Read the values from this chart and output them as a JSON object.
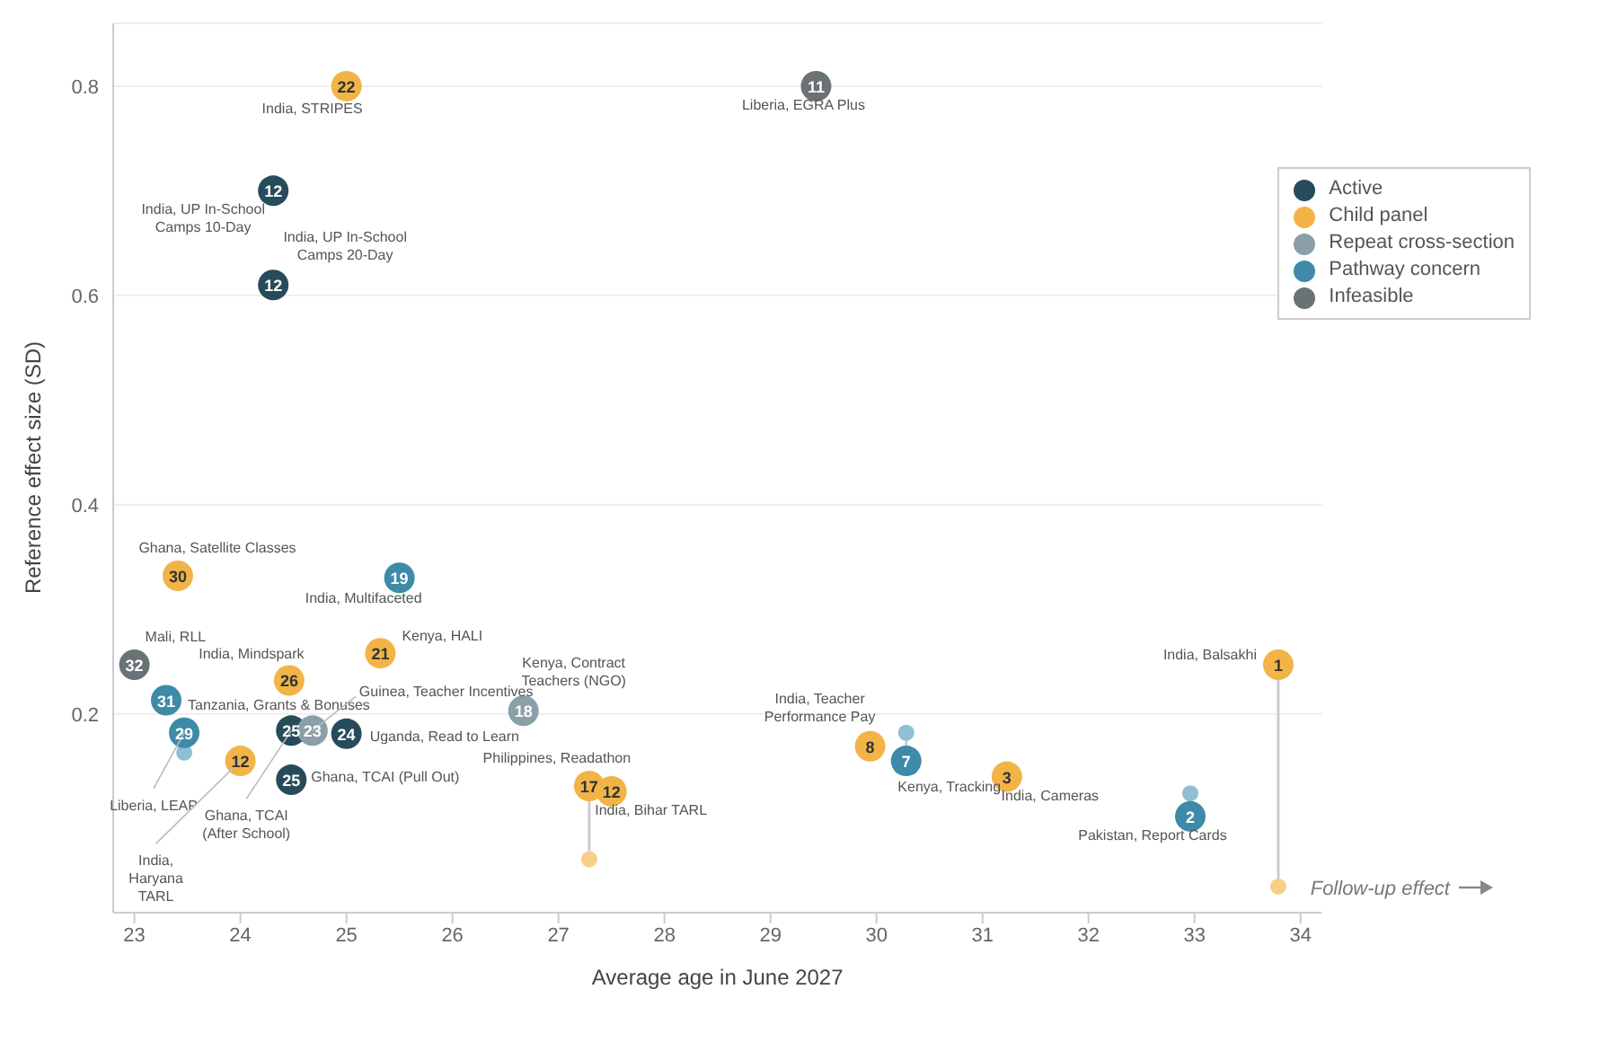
{
  "chart_data": {
    "type": "scatter",
    "xlabel": "Average age in June 2027",
    "ylabel": "Reference effect size (SD)",
    "xlim": [
      22.8,
      34.2
    ],
    "xticks": [
      23,
      24,
      25,
      26,
      27,
      28,
      29,
      30,
      31,
      32,
      33,
      34
    ],
    "ylim": [
      0.01,
      0.86
    ],
    "yticks": [
      0.2,
      0.4,
      0.6,
      0.8
    ],
    "grid": "y",
    "legend": "top right",
    "marker": "circle",
    "series": [
      {
        "name": "Active",
        "color": "#264b5a",
        "x": [
          24.31,
          24.31,
          24.48,
          25.0,
          24.48
        ],
        "values": [
          0.7,
          0.61,
          0.184,
          0.181,
          0.137
        ]
      },
      {
        "name": "Child panel",
        "color": "#f2b447",
        "x": [
          25.0,
          23.41,
          25.32,
          24.46,
          24.0,
          27.29,
          27.5,
          29.94,
          31.23,
          33.79
        ],
        "values": [
          0.8,
          0.332,
          0.258,
          0.232,
          0.155,
          0.131,
          0.126,
          0.169,
          0.14,
          0.247
        ]
      },
      {
        "name": "Repeat cross-section",
        "color": "#8a9fa8",
        "x": [
          24.68,
          26.67
        ],
        "values": [
          0.184,
          0.203
        ]
      },
      {
        "name": "Pathway concern",
        "color": "#3e8aa8",
        "x": [
          25.5,
          23.3,
          23.47,
          30.28,
          32.96
        ],
        "values": [
          0.33,
          0.213,
          0.182,
          0.155,
          0.102
        ]
      },
      {
        "name": "Infeasible",
        "color": "#6b7275",
        "x": [
          29.43,
          23.0
        ],
        "values": [
          0.8,
          0.247
        ]
      },
      {
        "type": "scatter",
        "marker": "circle",
        "colors": [
          "#8fbfd3",
          "#f7cf86",
          "#8fbfd3",
          "#8fbfd3",
          "#f7cf86"
        ],
        "x": [
          23.47,
          27.29,
          30.28,
          32.96,
          33.79
        ],
        "values": [
          0.163,
          0.061,
          0.182,
          0.124,
          0.035
        ],
        "errors": [
          [
            0.163,
            0.182
          ],
          [
            0.061,
            0.131
          ],
          [
            0.155,
            0.182
          ],
          [
            0.102,
            0.124
          ],
          [
            0.035,
            0.247
          ]
        ]
      }
    ],
    "annotations": [
      {
        "text": "India, STRIPES",
        "x": 25.0,
        "y": 0.8
      },
      {
        "text": "Liberia, EGRA Plus",
        "x": 29.43,
        "y": 0.8
      },
      {
        "text": "India, UP In-School\nCamps 10-Day",
        "x": 24.31,
        "y": 0.7
      },
      {
        "text": "India, UP In-School\nCamps 20-Day",
        "x": 24.31,
        "y": 0.61
      },
      {
        "text": "Ghana, Satellite Classes",
        "x": 23.41,
        "y": 0.332
      },
      {
        "text": "India, Multifaceted",
        "x": 25.5,
        "y": 0.33
      },
      {
        "text": "Mali, RLL",
        "x": 23.0,
        "y": 0.247
      },
      {
        "text": "Kenya, HALI",
        "x": 25.32,
        "y": 0.258
      },
      {
        "text": "India, Mindspark",
        "x": 24.46,
        "y": 0.232
      },
      {
        "text": "Tanzania, Grants & Bonuses",
        "x": 23.3,
        "y": 0.213
      },
      {
        "text": "Liberia, LEAP",
        "x": 23.47,
        "y": 0.182
      },
      {
        "text": "India,\nHaryana\nTARL",
        "x": 24.0,
        "y": 0.155
      },
      {
        "text": "Ghana, TCAI\n(After School)",
        "x": 24.48,
        "y": 0.184
      },
      {
        "text": "Guinea, Teacher Incentives",
        "x": 24.68,
        "y": 0.184
      },
      {
        "text": "Uganda, Read to Learn",
        "x": 25.0,
        "y": 0.181
      },
      {
        "text": "Ghana, TCAI (Pull Out)",
        "x": 24.48,
        "y": 0.137
      },
      {
        "text": "Kenya, Contract\nTeachers (NGO)",
        "x": 26.67,
        "y": 0.203
      },
      {
        "text": "Philippines, Readathon",
        "x": 27.29,
        "y": 0.131
      },
      {
        "text": "India, Bihar TARL",
        "x": 27.5,
        "y": 0.126
      },
      {
        "text": "India, Teacher\nPerformance Pay",
        "x": 29.94,
        "y": 0.169
      },
      {
        "text": "Kenya, Tracking",
        "x": 30.28,
        "y": 0.155
      },
      {
        "text": "India, Cameras",
        "x": 31.23,
        "y": 0.14
      },
      {
        "text": "Pakistan, Report Cards",
        "x": 32.96,
        "y": 0.102
      },
      {
        "text": "India, Balsakhi",
        "x": 33.79,
        "y": 0.247
      },
      "Follow-up effect",
      {
        "text": "12",
        "x": 24.31,
        "y": 0.7
      },
      {
        "text": "12",
        "x": 24.31,
        "y": 0.61
      },
      {
        "text": "25",
        "x": 24.48,
        "y": 0.184
      },
      {
        "text": "24",
        "x": 25.0,
        "y": 0.181
      },
      {
        "text": "25",
        "x": 24.48,
        "y": 0.137
      },
      {
        "text": "22",
        "x": 25.0,
        "y": 0.8
      },
      {
        "text": "30",
        "x": 23.41,
        "y": 0.332
      },
      {
        "text": "21",
        "x": 25.32,
        "y": 0.258
      },
      {
        "text": "26",
        "x": 24.46,
        "y": 0.232
      },
      {
        "text": "12",
        "x": 24.0,
        "y": 0.155
      },
      {
        "text": "17",
        "x": 27.29,
        "y": 0.131
      },
      {
        "text": "12",
        "x": 27.5,
        "y": 0.126
      },
      {
        "text": "8",
        "x": 29.94,
        "y": 0.169
      },
      {
        "text": "3",
        "x": 31.23,
        "y": 0.14
      },
      {
        "text": "1",
        "x": 33.79,
        "y": 0.247
      },
      {
        "text": "23",
        "x": 24.68,
        "y": 0.184
      },
      {
        "text": "18",
        "x": 26.67,
        "y": 0.203
      },
      {
        "text": "19",
        "x": 25.5,
        "y": 0.33
      },
      {
        "text": "31",
        "x": 23.3,
        "y": 0.213
      },
      {
        "text": "29",
        "x": 23.47,
        "y": 0.182
      },
      {
        "text": "7",
        "x": 30.28,
        "y": 0.155
      },
      {
        "text": "2",
        "x": 32.96,
        "y": 0.102
      },
      {
        "text": "11",
        "x": 29.43,
        "y": 0.8
      },
      {
        "text": "32",
        "x": 23.0,
        "y": 0.247
      }
    ]
  }
}
